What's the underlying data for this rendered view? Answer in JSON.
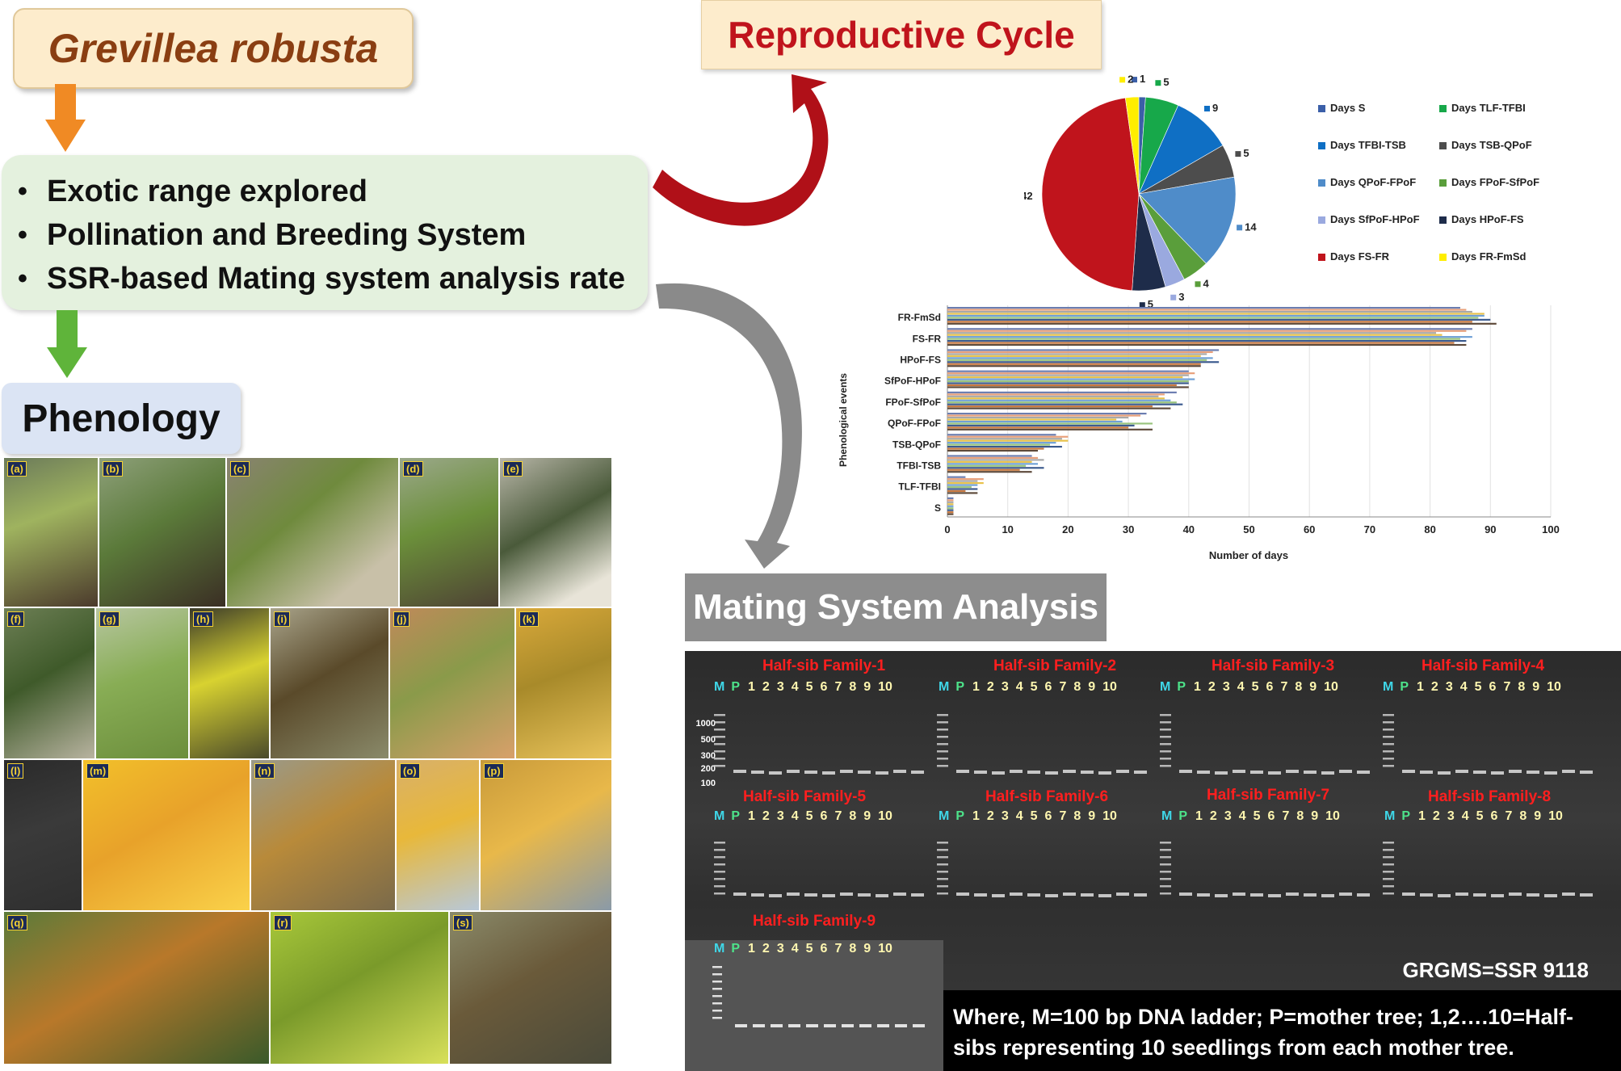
{
  "title": "Grevillea robusta",
  "bullets": [
    "Exotic range explored",
    "Pollination and Breeding System",
    "SSR-based Mating system analysis rate"
  ],
  "phenology_title": "Phenology",
  "reproductive_title": "Reproductive Cycle",
  "mating_title": "Mating System Analysis",
  "colors": {
    "title_bg": "#fdeccc",
    "title_text": "#8a3e12",
    "bullet_bg": "#e4f1de",
    "phenology_bg": "#dbe4f4",
    "repro_text": "#c0141c",
    "arrow_orange": "#f08a24",
    "arrow_green": "#5fb43a",
    "arrow_red": "#b01018",
    "arrow_gray": "#8a8a8a"
  },
  "photo_labels": [
    "(a)",
    "(b)",
    "(c)",
    "(d)",
    "(e)",
    "(f)",
    "(g)",
    "(h)",
    "(i)",
    "(j)",
    "(k)",
    "(l)",
    "(m)",
    "(n)",
    "(o)",
    "(p)",
    "(q)",
    "(r)",
    "(s)"
  ],
  "gel": {
    "families": [
      "Half-sib Family-1",
      "Half-sib Family-2",
      "Half-sib Family-3",
      "Half-sib Family-4",
      "Half-sib Family-5",
      "Half-sib Family-6",
      "Half-sib Family-7",
      "Half-sib Family-8",
      "Half-sib Family-9"
    ],
    "lane_marker": "M",
    "lane_parent": "P",
    "lane_numbers": [
      "1",
      "2",
      "3",
      "4",
      "5",
      "6",
      "7",
      "8",
      "9",
      "10"
    ],
    "ladder_sizes": [
      "1000",
      "500",
      "300",
      "200",
      "100"
    ],
    "marker_name": "GRGMS=SSR 9118",
    "legend": "Where, M=100 bp DNA ladder; P=mother tree; 1,2….10=Half-sibs representing 10 seedlings from each mother tree."
  },
  "chart_data": [
    {
      "type": "pie",
      "title": "",
      "labels": [
        "Days S",
        "Days TLF-TFBI",
        "Days TFBI-TSB",
        "Days TSB-QPoF",
        "Days QPoF-FPoF",
        "Days FPoF-SfPoF",
        "Days SfPoF-HPoF",
        "Days HPoF-FS",
        "Days FS-FR",
        "Days FR-FmSd"
      ],
      "values": [
        1,
        5,
        9,
        5,
        14,
        4,
        3,
        5,
        42,
        2
      ],
      "colors": [
        "#3b5fa8",
        "#17a84a",
        "#0f6fc4",
        "#4d4d4d",
        "#4f8cc9",
        "#5a9e3b",
        "#9aa9df",
        "#1e2c4a",
        "#c0141c",
        "#ffee00"
      ],
      "legend_position": "right"
    },
    {
      "type": "bar",
      "orientation": "horizontal",
      "title": "",
      "xlabel": "Number of days",
      "ylabel": "Phenological events",
      "categories": [
        "S",
        "TLF-TFBI",
        "TFBI-TSB",
        "TSB-QPoF",
        "QPoF-FPoF",
        "FPoF-SfPoF",
        "SfPoF-HPoF",
        "HPoF-FS",
        "FS-FR",
        "FR-FmSd"
      ],
      "xlim": [
        0,
        100
      ],
      "xticks": [
        "0",
        "10",
        "20",
        "30",
        "40",
        "50",
        "60",
        "70",
        "80",
        "90",
        "100"
      ],
      "grid": true,
      "series": [
        {
          "values": [
            1,
            3,
            14,
            18,
            33,
            38,
            40,
            45,
            87,
            85
          ]
        },
        {
          "values": [
            1,
            6,
            15,
            20,
            32,
            36,
            41,
            44,
            86,
            86
          ]
        },
        {
          "values": [
            1,
            5,
            16,
            19,
            30,
            35,
            40,
            43,
            81,
            87
          ]
        },
        {
          "values": [
            1,
            6,
            14,
            20,
            28,
            36,
            39,
            42,
            82,
            89
          ]
        },
        {
          "values": [
            1,
            5,
            15,
            18,
            29,
            37,
            41,
            44,
            87,
            89
          ]
        },
        {
          "values": [
            1,
            4,
            13,
            17,
            34,
            38,
            40,
            43,
            85,
            88
          ]
        },
        {
          "values": [
            1,
            5,
            16,
            19,
            31,
            39,
            40,
            45,
            86,
            90
          ]
        },
        {
          "values": [
            1,
            3,
            12,
            16,
            30,
            34,
            38,
            42,
            84,
            87
          ]
        },
        {
          "values": [
            1,
            5,
            14,
            15,
            34,
            37,
            40,
            42,
            86,
            91
          ]
        }
      ],
      "series_colors": [
        "#6b7db0",
        "#e8a07a",
        "#a8a8a8",
        "#e8c24a",
        "#6fa0d6",
        "#9ac47e",
        "#3b5a8e",
        "#c8783e",
        "#5e4a3a"
      ]
    }
  ]
}
